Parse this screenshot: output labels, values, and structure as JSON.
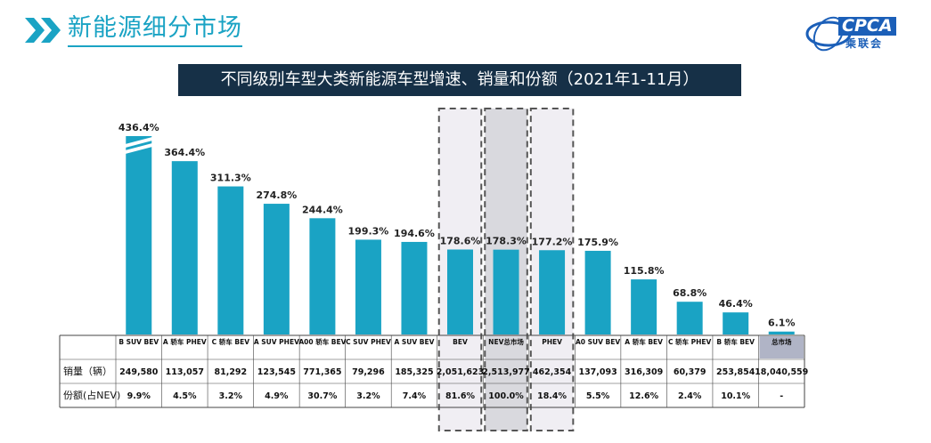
{
  "header": {
    "title": "新能源细分市场",
    "logo_text": "CPCA",
    "logo_sub": "乘联会"
  },
  "colors": {
    "bar": "#1aa3c4",
    "title_bg": "#163047",
    "highlight_bg": "#f0eef3",
    "nev_bg": "#d9d9de",
    "total_cell": "#b0b4c6"
  },
  "chart_data": {
    "type": "bar",
    "title": "不同级别车型大类新能源车型增速、销量和份额（2021年1-11月）",
    "categories": [
      "B SUV BEV",
      "A 轿车 PHEV",
      "C 轿车 BEV",
      "A SUV PHEV",
      "A00 轿车 BEV",
      "C SUV PHEV",
      "A SUV BEV",
      "BEV",
      "NEV总市场",
      "PHEV",
      "A0 SUV BEV",
      "A 轿车 BEV",
      "C 轿车 PHEV",
      "B 轿车 BEV",
      "总市场"
    ],
    "growth_pct": [
      436.4,
      364.4,
      311.3,
      274.8,
      244.4,
      199.3,
      194.6,
      178.6,
      178.3,
      177.2,
      175.9,
      115.8,
      68.8,
      46.4,
      6.1
    ],
    "growth_labels": [
      "436.4%",
      "364.4%",
      "311.3%",
      "274.8%",
      "244.4%",
      "199.3%",
      "194.6%",
      "178.6%",
      "178.3%",
      "177.2%",
      "175.9%",
      "115.8%",
      "68.8%",
      "46.4%",
      "6.1%"
    ],
    "sales": [
      "249,580",
      "113,057",
      "81,292",
      "123,545",
      "771,365",
      "79,296",
      "185,325",
      "2,051,623",
      "2,513,977",
      "462,354",
      "137,093",
      "316,309",
      "60,379",
      "253,854",
      "18,040,559"
    ],
    "share": [
      "9.9%",
      "4.5%",
      "3.2%",
      "4.9%",
      "30.7%",
      "3.2%",
      "7.4%",
      "81.6%",
      "100.0%",
      "18.4%",
      "5.5%",
      "12.6%",
      "2.4%",
      "10.1%",
      "-"
    ],
    "row_labels": [
      "销量（辆）",
      "份额(占NEV)"
    ],
    "highlighted": [
      "BEV",
      "NEV总市场",
      "PHEV"
    ],
    "broken_axis_bar": "B SUV BEV",
    "unit": "%"
  }
}
